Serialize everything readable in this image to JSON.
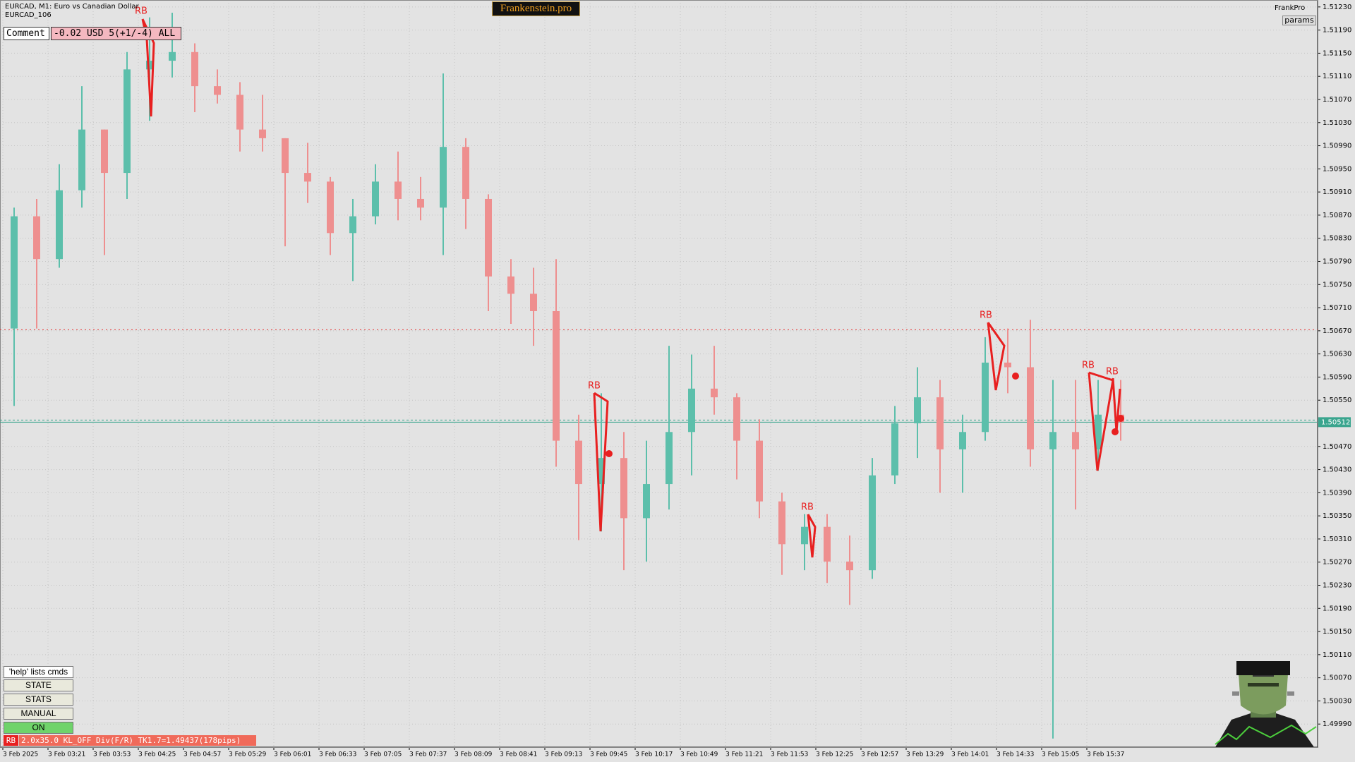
{
  "header": {
    "symbol_line": "EURCAD, M1:  Euro vs Canadian Dollar",
    "account": "EURCAD_106",
    "brand": "Frankenstein.pro",
    "user": "FrankPro",
    "params_button": "params"
  },
  "panel": {
    "comment_label": "Comment",
    "comment_value": "-0.02 USD 5(+1/-4) ALL",
    "help": "'help' lists cmds",
    "buttons": [
      "STATE",
      "STATS",
      "MANUAL",
      "ON"
    ],
    "status_tag": "RB",
    "status_text": "2.0x35.0 KL_OFF Div(F/R) TK1.7=1.49437(178pips)"
  },
  "chart_data": {
    "type": "candlestick",
    "up_color": "#5cbfab",
    "down_color": "#ee8f8f",
    "grid": true,
    "ylim": [
      1.4995,
      1.51242
    ],
    "yticks": [
      {
        "value": 1.5123,
        "label": "1.51230"
      },
      {
        "value": 1.5119,
        "label": "1.51190"
      },
      {
        "value": 1.5115,
        "label": "1.51150"
      },
      {
        "value": 1.5111,
        "label": "1.51110"
      },
      {
        "value": 1.5107,
        "label": "1.51070"
      },
      {
        "value": 1.5103,
        "label": "1.51030"
      },
      {
        "value": 1.5099,
        "label": "1.50990"
      },
      {
        "value": 1.5095,
        "label": "1.50950"
      },
      {
        "value": 1.5091,
        "label": "1.50910"
      },
      {
        "value": 1.5087,
        "label": "1.50870"
      },
      {
        "value": 1.5083,
        "label": "1.50830"
      },
      {
        "value": 1.5079,
        "label": "1.50790"
      },
      {
        "value": 1.5075,
        "label": "1.50750"
      },
      {
        "value": 1.5071,
        "label": "1.50710"
      },
      {
        "value": 1.5067,
        "label": "1.50670"
      },
      {
        "value": 1.5063,
        "label": "1.50630"
      },
      {
        "value": 1.5059,
        "label": "1.50590"
      },
      {
        "value": 1.5055,
        "label": "1.50550"
      },
      {
        "value": 1.5047,
        "label": "1.50470"
      },
      {
        "value": 1.5043,
        "label": "1.50430"
      },
      {
        "value": 1.5039,
        "label": "1.50390"
      },
      {
        "value": 1.5035,
        "label": "1.50350"
      },
      {
        "value": 1.5031,
        "label": "1.50310"
      },
      {
        "value": 1.5027,
        "label": "1.50270"
      },
      {
        "value": 1.5023,
        "label": "1.50230"
      },
      {
        "value": 1.5019,
        "label": "1.50190"
      },
      {
        "value": 1.5015,
        "label": "1.50150"
      },
      {
        "value": 1.5011,
        "label": "1.50110"
      },
      {
        "value": 1.5007,
        "label": "1.50070"
      },
      {
        "value": 1.5003,
        "label": "1.50030"
      },
      {
        "value": 1.4999,
        "label": "1.49990"
      }
    ],
    "xtick_labels": [
      "3 Feb 2025",
      "3 Feb 03:21",
      "3 Feb 03:53",
      "3 Feb 04:25",
      "3 Feb 04:57",
      "3 Feb 05:29",
      "3 Feb 06:01",
      "3 Feb 06:33",
      "3 Feb 07:05",
      "3 Feb 07:37",
      "3 Feb 08:09",
      "3 Feb 08:41",
      "3 Feb 09:13",
      "3 Feb 09:45",
      "3 Feb 10:17",
      "3 Feb 10:49",
      "3 Feb 11:21",
      "3 Feb 11:53",
      "3 Feb 12:25",
      "3 Feb 12:57",
      "3 Feb 13:29",
      "3 Feb 14:01",
      "3 Feb 14:33",
      "3 Feb 15:05",
      "3 Feb 15:37"
    ],
    "ohlc": [
      [
        1.50674,
        1.50883,
        1.5054,
        1.50868
      ],
      [
        1.50868,
        1.50898,
        1.50674,
        1.50794
      ],
      [
        1.50794,
        1.50958,
        1.50779,
        1.50913
      ],
      [
        1.50913,
        1.51093,
        1.50883,
        1.51018
      ],
      [
        1.51018,
        1.51018,
        1.50801,
        1.50943
      ],
      [
        1.50943,
        1.51152,
        1.50898,
        1.51122
      ],
      [
        1.51122,
        1.51212,
        1.51033,
        1.51137
      ],
      [
        1.51137,
        1.5122,
        1.51108,
        1.51152
      ],
      [
        1.51152,
        1.51167,
        1.51048,
        1.51093
      ],
      [
        1.51093,
        1.51122,
        1.51063,
        1.51078
      ],
      [
        1.51078,
        1.511,
        1.5098,
        1.51018
      ],
      [
        1.51018,
        1.51078,
        1.5098,
        1.51003
      ],
      [
        1.51003,
        1.51003,
        1.50816,
        1.50943
      ],
      [
        1.50943,
        1.50995,
        1.50891,
        1.50928
      ],
      [
        1.50928,
        1.50936,
        1.50801,
        1.50839
      ],
      [
        1.50839,
        1.50898,
        1.50756,
        1.50868
      ],
      [
        1.50868,
        1.50958,
        1.50854,
        1.50928
      ],
      [
        1.50928,
        1.5098,
        1.50861,
        1.50898
      ],
      [
        1.50898,
        1.50936,
        1.50861,
        1.50883
      ],
      [
        1.50883,
        1.51115,
        1.50801,
        1.50988
      ],
      [
        1.50988,
        1.51003,
        1.50846,
        1.50898
      ],
      [
        1.50898,
        1.50906,
        1.50704,
        1.50764
      ],
      [
        1.50764,
        1.50794,
        1.50682,
        1.50734
      ],
      [
        1.50734,
        1.50779,
        1.50644,
        1.50704
      ],
      [
        1.50704,
        1.50794,
        1.50435,
        1.5048
      ],
      [
        1.5048,
        1.50525,
        1.50308,
        1.50405
      ],
      [
        1.50405,
        1.50562,
        1.50323,
        1.5045
      ],
      [
        1.5045,
        1.50495,
        1.50256,
        1.50346
      ],
      [
        1.50346,
        1.5048,
        1.50271,
        1.50405
      ],
      [
        1.50405,
        1.50644,
        1.50361,
        1.50495
      ],
      [
        1.50495,
        1.50629,
        1.5042,
        1.5057
      ],
      [
        1.5057,
        1.50644,
        1.50525,
        1.50555
      ],
      [
        1.50555,
        1.50562,
        1.50413,
        1.5048
      ],
      [
        1.5048,
        1.50517,
        1.50346,
        1.50375
      ],
      [
        1.50375,
        1.5039,
        1.50248,
        1.50301
      ],
      [
        1.50301,
        1.50353,
        1.50256,
        1.50331
      ],
      [
        1.50331,
        1.50353,
        1.50234,
        1.50271
      ],
      [
        1.50271,
        1.50316,
        1.50196,
        1.50256
      ],
      [
        1.50256,
        1.5045,
        1.50241,
        1.5042
      ],
      [
        1.5042,
        1.5054,
        1.50405,
        1.5051
      ],
      [
        1.5051,
        1.50607,
        1.5045,
        1.50555
      ],
      [
        1.50555,
        1.50585,
        1.5039,
        1.50465
      ],
      [
        1.50465,
        1.50525,
        1.5039,
        1.50495
      ],
      [
        1.50495,
        1.50659,
        1.5048,
        1.50615
      ],
      [
        1.50615,
        1.50674,
        1.50562,
        1.50607
      ],
      [
        1.50607,
        1.50689,
        1.50435,
        1.50465
      ],
      [
        1.50465,
        1.50585,
        1.49965,
        1.50495
      ],
      [
        1.50495,
        1.50585,
        1.50361,
        1.50465
      ],
      [
        1.50465,
        1.50585,
        1.50428,
        1.50525
      ],
      [
        1.50525,
        1.50585,
        1.5048,
        1.50512
      ]
    ],
    "current_price": 1.50512,
    "current_price_color": "#3aa58e",
    "level_line": 1.50672,
    "level_color": "#e83030",
    "annotations": [
      "RB",
      "RB",
      "RB",
      "RB",
      "RB",
      "RB"
    ],
    "annotation_color": "#e82020"
  }
}
